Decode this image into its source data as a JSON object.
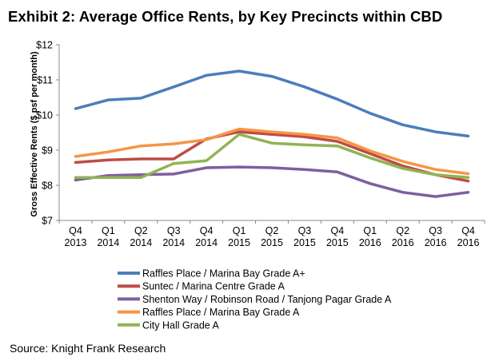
{
  "title": "Exhibit 2: Average Office Rents, by Key Precincts within CBD",
  "source": "Source: Knight Frank Research",
  "chart_data": {
    "type": "line",
    "ylabel": "Gross Effective Rents ($ psf per month)",
    "xlabel": "",
    "ylim": [
      7,
      12
    ],
    "yticks": [
      "$7",
      "$8",
      "$9",
      "$10",
      "$11",
      "$12"
    ],
    "grid": false,
    "legend_position": "bottom",
    "categories": [
      [
        "Q4",
        "2013"
      ],
      [
        "Q1",
        "2014"
      ],
      [
        "Q2",
        "2014"
      ],
      [
        "Q3",
        "2014"
      ],
      [
        "Q4",
        "2014"
      ],
      [
        "Q1",
        "2015"
      ],
      [
        "Q2",
        "2015"
      ],
      [
        "Q3",
        "2015"
      ],
      [
        "Q4",
        "2015"
      ],
      [
        "Q1",
        "2016"
      ],
      [
        "Q2",
        "2016"
      ],
      [
        "Q3",
        "2016"
      ],
      [
        "Q4",
        "2016"
      ]
    ],
    "series": [
      {
        "name": "Raffles Place / Marina Bay Grade A+",
        "color": "#4a7ebb",
        "values": [
          10.18,
          10.43,
          10.48,
          10.8,
          11.13,
          11.25,
          11.1,
          10.8,
          10.45,
          10.05,
          9.72,
          9.52,
          9.4
        ]
      },
      {
        "name": "Suntec / Marina Centre Grade A",
        "color": "#be4b48",
        "values": [
          8.65,
          8.72,
          8.75,
          8.75,
          9.32,
          9.52,
          9.45,
          9.38,
          9.25,
          8.9,
          8.55,
          8.3,
          8.12
        ]
      },
      {
        "name": "Shenton Way / Robinson Road / Tanjong Pagar Grade A",
        "color": "#7d5fa0",
        "values": [
          8.15,
          8.28,
          8.3,
          8.32,
          8.5,
          8.52,
          8.5,
          8.45,
          8.38,
          8.05,
          7.8,
          7.68,
          7.8
        ]
      },
      {
        "name": "Raffles Place / Marina Bay Grade A",
        "color": "#f69545",
        "values": [
          8.82,
          8.95,
          9.12,
          9.18,
          9.3,
          9.6,
          9.52,
          9.45,
          9.35,
          8.98,
          8.68,
          8.45,
          8.33
        ]
      },
      {
        "name": "City Hall Grade A",
        "color": "#8fb453",
        "values": [
          8.22,
          8.22,
          8.22,
          8.62,
          8.7,
          9.45,
          9.2,
          9.15,
          9.12,
          8.78,
          8.48,
          8.3,
          8.22
        ]
      }
    ]
  }
}
